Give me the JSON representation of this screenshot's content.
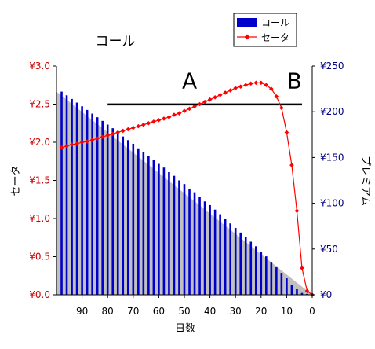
{
  "chart_data": {
    "type": "bar",
    "title": "コール",
    "xlabel": "日数",
    "ylabel_left": "セータ",
    "ylabel_right": "プレミアム",
    "x_ticks": [
      90,
      80,
      70,
      60,
      50,
      40,
      30,
      20,
      10,
      0
    ],
    "x_range": [
      100,
      0
    ],
    "y_left_ticks": [
      "¥0.0",
      "¥0.5",
      "¥1.0",
      "¥1.5",
      "¥2.0",
      "¥2.5",
      "¥3.0"
    ],
    "y_left_range": [
      0,
      3.0
    ],
    "y_right_ticks": [
      "¥0",
      "¥50",
      "¥100",
      "¥150",
      "¥200",
      "¥250"
    ],
    "y_right_range": [
      0,
      250
    ],
    "legend": {
      "placement": "top-right",
      "entries": [
        "コール",
        "セータ"
      ]
    },
    "colors": {
      "bars": "#0000cc",
      "theta": "#ff0000",
      "left_axis_labels": "#cc0000",
      "right_axis_labels": "#000080",
      "plot_background": "#c0c0c0"
    },
    "series": [
      {
        "name": "コール",
        "axis": "right",
        "type": "bar",
        "x": [
          98,
          96,
          94,
          92,
          90,
          88,
          86,
          84,
          82,
          80,
          78,
          76,
          74,
          72,
          70,
          68,
          66,
          64,
          62,
          60,
          58,
          56,
          54,
          52,
          50,
          48,
          46,
          44,
          42,
          40,
          38,
          36,
          34,
          32,
          30,
          28,
          26,
          24,
          22,
          20,
          18,
          16,
          14,
          12,
          10,
          8,
          6,
          4,
          2
        ],
        "values": [
          222,
          218,
          214,
          210,
          206,
          202,
          198,
          194,
          190,
          186,
          182,
          177,
          173,
          169,
          165,
          160,
          156,
          152,
          147,
          143,
          139,
          134,
          130,
          125,
          121,
          116,
          112,
          107,
          102,
          98,
          93,
          88,
          83,
          78,
          73,
          68,
          63,
          58,
          53,
          47,
          42,
          36,
          30,
          24,
          18,
          11,
          6,
          2,
          1
        ]
      },
      {
        "name": "セータ",
        "axis": "left",
        "type": "line",
        "x": [
          98,
          96,
          94,
          92,
          90,
          88,
          86,
          84,
          82,
          80,
          78,
          76,
          74,
          72,
          70,
          68,
          66,
          64,
          62,
          60,
          58,
          56,
          54,
          52,
          50,
          48,
          46,
          44,
          42,
          40,
          38,
          36,
          34,
          32,
          30,
          28,
          26,
          24,
          22,
          20,
          18,
          16,
          14,
          12,
          10,
          8,
          6,
          4,
          2,
          0
        ],
        "values": [
          1.93,
          1.95,
          1.97,
          1.98,
          2.0,
          2.01,
          2.03,
          2.05,
          2.07,
          2.09,
          2.11,
          2.13,
          2.15,
          2.17,
          2.19,
          2.21,
          2.23,
          2.25,
          2.27,
          2.29,
          2.31,
          2.33,
          2.36,
          2.38,
          2.41,
          2.44,
          2.47,
          2.5,
          2.53,
          2.56,
          2.59,
          2.62,
          2.65,
          2.68,
          2.71,
          2.73,
          2.75,
          2.77,
          2.78,
          2.78,
          2.75,
          2.7,
          2.6,
          2.45,
          2.13,
          1.7,
          1.1,
          0.35,
          0.05,
          0.0
        ]
      }
    ],
    "annotations": [
      {
        "text": "A",
        "x": 48,
        "y_right": 215
      },
      {
        "text": "B",
        "x": 7,
        "y_right": 215
      }
    ],
    "reference_line": {
      "y_right": 208,
      "x_start": 80,
      "x_end": 4
    }
  }
}
